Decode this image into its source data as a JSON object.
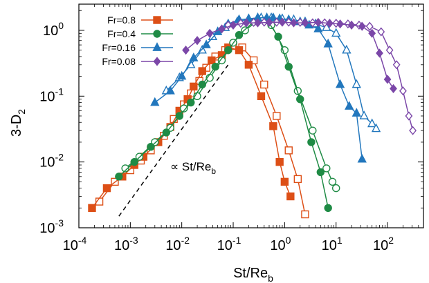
{
  "chart_data": {
    "type": "scatter",
    "xscale": "log",
    "yscale": "log",
    "xlim": [
      0.0001,
      500
    ],
    "ylim": [
      0.001,
      2.5
    ],
    "grid": false,
    "legend_position": "top-left",
    "xlabel": {
      "main": "St/Re",
      "sub": "b"
    },
    "ylabel": {
      "main": "3-D",
      "sub": "2"
    },
    "annotation": {
      "prefix": "∝ St/Re",
      "sub": "b"
    },
    "x_ticks": [
      {
        "value": 0.0001,
        "base": "10",
        "exp": "-4"
      },
      {
        "value": 0.001,
        "base": "10",
        "exp": "-3"
      },
      {
        "value": 0.01,
        "base": "10",
        "exp": "-2"
      },
      {
        "value": 0.1,
        "base": "10",
        "exp": "-1"
      },
      {
        "value": 1,
        "base": "10",
        "exp": "0"
      },
      {
        "value": 10,
        "base": "10",
        "exp": "1"
      },
      {
        "value": 100,
        "base": "10",
        "exp": "2"
      }
    ],
    "y_ticks": [
      {
        "value": 0.001,
        "base": "10",
        "exp": "-3"
      },
      {
        "value": 0.01,
        "base": "10",
        "exp": "-2"
      },
      {
        "value": 0.1,
        "base": "10",
        "exp": "-1"
      },
      {
        "value": 1,
        "base": "10",
        "exp": "0"
      }
    ],
    "reference_line": {
      "x": [
        0.0006,
        0.08
      ],
      "y": [
        0.0015,
        0.3
      ]
    },
    "series": [
      {
        "name": "Fr=0.8",
        "color": "#dd4f16",
        "marker": "square",
        "filled": {
          "x": [
            0.00018,
            0.00035,
            0.0007,
            0.0012,
            0.0018,
            0.0035,
            0.006,
            0.009,
            0.013,
            0.017,
            0.025,
            0.038,
            0.06,
            0.08,
            0.13,
            0.2,
            0.35,
            0.6,
            0.8,
            1.0,
            1.3
          ],
          "y": [
            0.002,
            0.004,
            0.006,
            0.009,
            0.012,
            0.02,
            0.034,
            0.06,
            0.09,
            0.14,
            0.24,
            0.35,
            0.42,
            0.55,
            0.5,
            0.3,
            0.1,
            0.035,
            0.01,
            0.005,
            0.003
          ]
        },
        "open": {
          "x": [
            0.00025,
            0.0005,
            0.001,
            0.0016,
            0.0025,
            0.0045,
            0.007,
            0.011,
            0.015,
            0.022,
            0.03,
            0.045,
            0.07,
            0.1,
            0.15,
            0.25,
            0.4,
            0.7,
            1.2,
            1.8,
            2.5
          ],
          "y": [
            0.0025,
            0.005,
            0.0075,
            0.0105,
            0.015,
            0.025,
            0.045,
            0.075,
            0.11,
            0.17,
            0.27,
            0.4,
            0.5,
            0.58,
            0.55,
            0.35,
            0.15,
            0.05,
            0.015,
            0.0055,
            0.0016
          ]
        }
      },
      {
        "name": "Fr=0.4",
        "color": "#1f8b45",
        "marker": "circle",
        "filled": {
          "x": [
            0.0006,
            0.0012,
            0.0025,
            0.005,
            0.009,
            0.015,
            0.025,
            0.045,
            0.08,
            0.13,
            0.25,
            0.45,
            0.75,
            1.2,
            2.0,
            3.3,
            5.0,
            7.0
          ],
          "y": [
            0.006,
            0.01,
            0.017,
            0.028,
            0.05,
            0.08,
            0.15,
            0.28,
            0.5,
            0.85,
            1.35,
            1.45,
            0.8,
            0.28,
            0.09,
            0.02,
            0.007,
            0.002
          ]
        },
        "open": {
          "x": [
            0.0008,
            0.0015,
            0.003,
            0.006,
            0.011,
            0.02,
            0.035,
            0.06,
            0.1,
            0.17,
            0.3,
            0.55,
            1.0,
            1.8,
            3.5,
            6.5,
            8.5,
            10
          ],
          "y": [
            0.008,
            0.012,
            0.02,
            0.033,
            0.065,
            0.1,
            0.19,
            0.35,
            0.65,
            1.0,
            1.4,
            1.2,
            0.5,
            0.12,
            0.03,
            0.008,
            0.005,
            0.004
          ]
        }
      },
      {
        "name": "Fr=0.16",
        "color": "#2277bd",
        "marker": "triangle",
        "filled": {
          "x": [
            0.003,
            0.006,
            0.01,
            0.017,
            0.03,
            0.05,
            0.08,
            0.13,
            0.2,
            0.3,
            0.45,
            0.6,
            0.8,
            1.2,
            2.0,
            3.0,
            4.5,
            7.0,
            12,
            18,
            25,
            32
          ],
          "y": [
            0.08,
            0.12,
            0.2,
            0.38,
            0.6,
            0.95,
            1.25,
            1.45,
            1.5,
            1.55,
            1.55,
            1.55,
            1.5,
            1.45,
            1.35,
            1.2,
            1.05,
            0.62,
            0.15,
            0.07,
            0.055,
            0.011
          ]
        },
        "open": {
          "x": [
            0.005,
            0.009,
            0.015,
            0.025,
            0.04,
            0.07,
            0.12,
            0.2,
            0.35,
            0.55,
            0.9,
            1.5,
            2.5,
            4,
            6.5,
            10,
            16,
            25,
            35,
            50,
            60
          ],
          "y": [
            0.12,
            0.19,
            0.3,
            0.5,
            0.8,
            1.1,
            1.35,
            1.48,
            1.55,
            1.55,
            1.5,
            1.45,
            1.35,
            1.25,
            1.1,
            0.9,
            0.5,
            0.15,
            0.05,
            0.038,
            0.032
          ]
        }
      },
      {
        "name": "Fr=0.08",
        "color": "#7b47a8",
        "marker": "diamond",
        "filled": {
          "x": [
            0.012,
            0.02,
            0.035,
            0.06,
            0.1,
            0.18,
            0.3,
            0.5,
            0.9,
            1.5,
            2.5,
            4.5,
            7.5,
            12,
            20,
            32,
            50,
            70,
            100,
            130
          ],
          "y": [
            0.5,
            0.7,
            0.9,
            1.05,
            1.2,
            1.3,
            1.3,
            1.32,
            1.33,
            1.3,
            1.3,
            1.32,
            1.28,
            1.25,
            1.2,
            1.15,
            0.9,
            0.45,
            0.18,
            0.13
          ]
        },
        "open": {
          "x": [
            0.08,
            0.14,
            0.25,
            0.4,
            0.7,
            1.2,
            2.0,
            3.5,
            6,
            10,
            17,
            28,
            45,
            75,
            110,
            150,
            200,
            260,
            310
          ],
          "y": [
            1.2,
            1.28,
            1.32,
            1.33,
            1.33,
            1.33,
            1.32,
            1.3,
            1.3,
            1.28,
            1.25,
            1.2,
            1.15,
            0.95,
            0.5,
            0.3,
            0.12,
            0.05,
            0.03
          ]
        }
      }
    ]
  }
}
